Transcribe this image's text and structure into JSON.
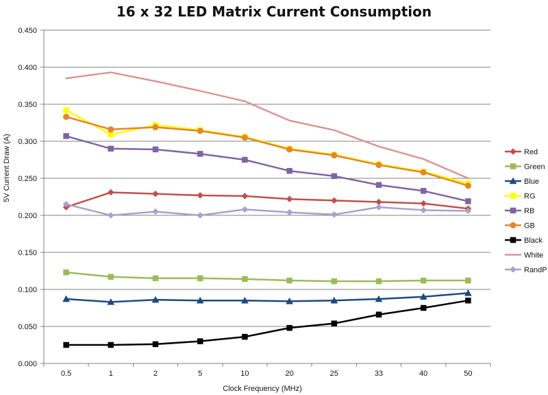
{
  "chart_data": {
    "type": "line",
    "title": "16 x 32 LED Matrix Current Consumption",
    "xlabel": "Clock Frequency (MHz)",
    "ylabel": "5V Current Draw (A)",
    "categories": [
      "0.5",
      "1",
      "2",
      "5",
      "10",
      "20",
      "25",
      "33",
      "40",
      "50"
    ],
    "ylim": [
      0,
      0.45
    ],
    "yticks": [
      "0.000",
      "0.050",
      "0.100",
      "0.150",
      "0.200",
      "0.250",
      "0.300",
      "0.350",
      "0.400",
      "0.450"
    ],
    "grid": "horizontal",
    "legend_position": "right",
    "series": [
      {
        "name": "Red",
        "color": "#C0504D",
        "marker": "diamond",
        "values": [
          0.211,
          0.231,
          0.229,
          0.227,
          0.226,
          0.222,
          0.22,
          0.218,
          0.216,
          0.209
        ]
      },
      {
        "name": "Green",
        "color": "#9BBB59",
        "marker": "square",
        "values": [
          0.123,
          0.117,
          0.115,
          0.115,
          0.114,
          0.112,
          0.111,
          0.111,
          0.112,
          0.112
        ]
      },
      {
        "name": "Blue",
        "color": "#1F497D",
        "marker": "triangle",
        "values": [
          0.087,
          0.083,
          0.086,
          0.085,
          0.085,
          0.084,
          0.085,
          0.087,
          0.09,
          0.095
        ]
      },
      {
        "name": "RG",
        "color": "#FFFF00",
        "marker": "square",
        "values": [
          0.342,
          0.309,
          0.322,
          0.315,
          0.306,
          0.29,
          0.282,
          0.269,
          0.259,
          0.243
        ]
      },
      {
        "name": "RB",
        "color": "#8064A2",
        "marker": "square",
        "values": [
          0.307,
          0.29,
          0.289,
          0.283,
          0.275,
          0.26,
          0.253,
          0.241,
          0.233,
          0.219
        ]
      },
      {
        "name": "GB",
        "color": "#E3862C",
        "marker": "circle",
        "values": [
          0.333,
          0.316,
          0.319,
          0.314,
          0.305,
          0.289,
          0.281,
          0.268,
          0.258,
          0.24
        ]
      },
      {
        "name": "Black",
        "color": "#000000",
        "marker": "square",
        "values": [
          0.025,
          0.025,
          0.026,
          0.03,
          0.036,
          0.048,
          0.054,
          0.066,
          0.075,
          0.085
        ]
      },
      {
        "name": "White",
        "color": "#D99694",
        "marker": "none",
        "values": [
          0.385,
          0.393,
          0.381,
          0.368,
          0.354,
          0.328,
          0.315,
          0.293,
          0.276,
          0.25
        ]
      },
      {
        "name": "RandP",
        "color": "#A9A1CA",
        "marker": "diamond",
        "values": [
          0.215,
          0.2,
          0.205,
          0.2,
          0.208,
          0.204,
          0.201,
          0.211,
          0.207,
          0.206
        ]
      }
    ]
  }
}
